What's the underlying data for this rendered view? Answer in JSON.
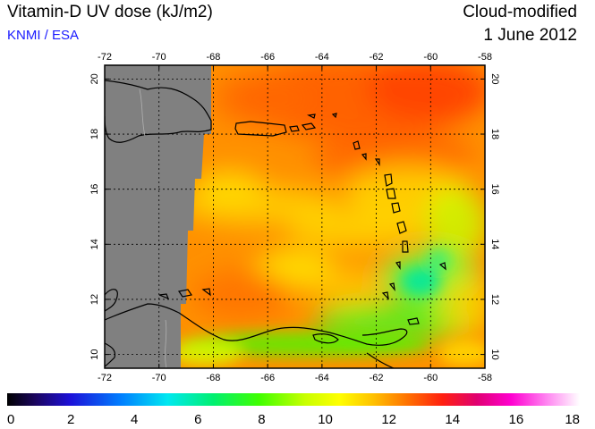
{
  "header": {
    "title": "Vitamin-D UV dose (kJ/m2)",
    "source": "KNMI / ESA",
    "product": "Cloud-modified",
    "date": "1 June 2012"
  },
  "map": {
    "lon_ticks": [
      "-72",
      "-70",
      "-68",
      "-66",
      "-64",
      "-62",
      "-60",
      "-58"
    ],
    "lat_ticks": [
      "10",
      "12",
      "14",
      "16",
      "18",
      "20"
    ],
    "lon_range": [
      -72,
      -58
    ],
    "lat_range": [
      9.5,
      20.5
    ],
    "gridlines": true,
    "no_data_color": "#808080"
  },
  "colorbar": {
    "labels": [
      "0",
      "2",
      "4",
      "6",
      "8",
      "10",
      "12",
      "14",
      "16",
      "18"
    ],
    "range": [
      0,
      18
    ]
  }
}
